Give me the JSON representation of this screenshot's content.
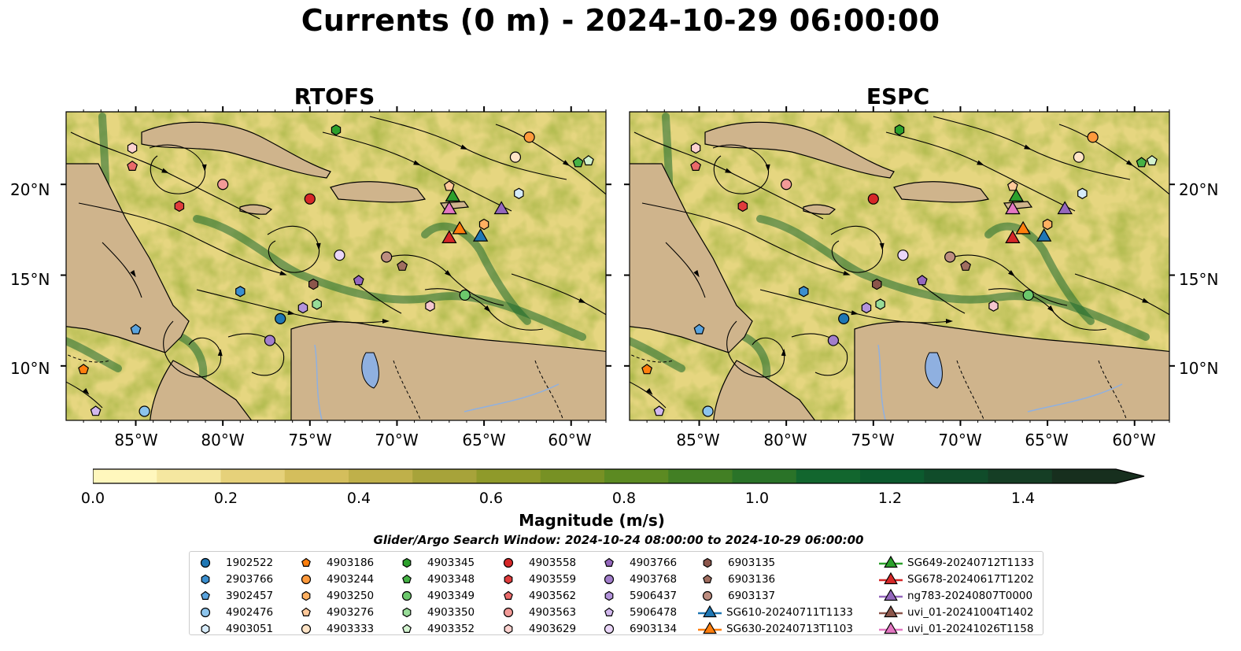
{
  "title": "Currents (0 m) - 2024-10-29 06:00:00",
  "panels": [
    {
      "title": "RTOFS"
    },
    {
      "title": "ESPC"
    }
  ],
  "lat_labels": [
    "20°N",
    "15°N",
    "10°N"
  ],
  "lon_labels": [
    "85°W",
    "80°W",
    "75°W",
    "70°W",
    "65°W",
    "60°W"
  ],
  "extent": {
    "lon_min": -89,
    "lon_max": -58,
    "lat_min": 7,
    "lat_max": 24
  },
  "colorbar": {
    "label": "Magnitude (m/s)",
    "ticks": [
      "0.0",
      "0.2",
      "0.4",
      "0.6",
      "0.8",
      "1.0",
      "1.2",
      "1.4"
    ],
    "min": 0.0,
    "max": 1.5,
    "extend": "max",
    "colors": [
      "#fff7bd",
      "#f5e7a0",
      "#e6d17a",
      "#d4be5c",
      "#bfb04a",
      "#a7a33a",
      "#8f9a2a",
      "#779124",
      "#5c8a22",
      "#427f24",
      "#2a7328",
      "#12662e",
      "#0c5a2e",
      "#104c2a",
      "#153e25",
      "#172f1e"
    ]
  },
  "search_window": "Glider/Argo Search Window: 2024-10-24 08:00:00 to 2024-10-29 06:00:00",
  "legend": [
    {
      "label": "1902522",
      "marker": "circle",
      "color": "#1f77b4"
    },
    {
      "label": "2903766",
      "marker": "hexagon",
      "color": "#3b8fcf"
    },
    {
      "label": "3902457",
      "marker": "pentagon",
      "color": "#5aa3dd"
    },
    {
      "label": "4902476",
      "marker": "circle",
      "color": "#8cc4ec"
    },
    {
      "label": "4903051",
      "marker": "hexagon",
      "color": "#d6ebfa"
    },
    {
      "label": "4903186",
      "marker": "pentagon",
      "color": "#ff7f0e"
    },
    {
      "label": "4903244",
      "marker": "circle",
      "color": "#ff9a3c"
    },
    {
      "label": "4903250",
      "marker": "hexagon",
      "color": "#ffb061"
    },
    {
      "label": "4903276",
      "marker": "pentagon",
      "color": "#ffc99a"
    },
    {
      "label": "4903333",
      "marker": "circle",
      "color": "#ffe4c6"
    },
    {
      "label": "4903345",
      "marker": "hexagon",
      "color": "#2ca02c"
    },
    {
      "label": "4903348",
      "marker": "pentagon",
      "color": "#45b245"
    },
    {
      "label": "4903349",
      "marker": "circle",
      "color": "#6cc86c"
    },
    {
      "label": "4903350",
      "marker": "hexagon",
      "color": "#98dc98"
    },
    {
      "label": "4903352",
      "marker": "pentagon",
      "color": "#d2f2cf"
    },
    {
      "label": "4903558",
      "marker": "circle",
      "color": "#d62728"
    },
    {
      "label": "4903559",
      "marker": "hexagon",
      "color": "#e03c3c"
    },
    {
      "label": "4903562",
      "marker": "pentagon",
      "color": "#ea6a6a"
    },
    {
      "label": "4903563",
      "marker": "circle",
      "color": "#f29a97"
    },
    {
      "label": "4903629",
      "marker": "hexagon",
      "color": "#fcd2cf"
    },
    {
      "label": "4903766",
      "marker": "pentagon",
      "color": "#9467bd"
    },
    {
      "label": "4903768",
      "marker": "circle",
      "color": "#a27ecb"
    },
    {
      "label": "5906437",
      "marker": "hexagon",
      "color": "#b393db"
    },
    {
      "label": "5906478",
      "marker": "pentagon",
      "color": "#d2b8ee"
    },
    {
      "label": "6903134",
      "marker": "circle",
      "color": "#ead6f8"
    },
    {
      "label": "6903135",
      "marker": "hexagon",
      "color": "#8c564b"
    },
    {
      "label": "6903136",
      "marker": "pentagon",
      "color": "#a06e60"
    },
    {
      "label": "6903137",
      "marker": "circle",
      "color": "#bd8d80"
    },
    {
      "label": "SG610-20240711T1133",
      "marker": "triangle-line",
      "color": "#1f77b4"
    },
    {
      "label": "SG630-20240713T1103",
      "marker": "triangle-line",
      "color": "#ff7f0e"
    },
    {
      "label": "SG649-20240712T1133",
      "marker": "triangle-line",
      "color": "#2ca02c"
    },
    {
      "label": "SG678-20240617T1202",
      "marker": "triangle-line",
      "color": "#d62728"
    },
    {
      "label": "ng783-20240807T0000",
      "marker": "triangle-line",
      "color": "#9467bd"
    },
    {
      "label": "uvi_01-20241004T1402",
      "marker": "triangle-line",
      "color": "#8c564b"
    },
    {
      "label": "uvi_01-20241026T1158",
      "marker": "triangle-line",
      "color": "#e377c2"
    }
  ],
  "markers": [
    {
      "id": "1902522",
      "lon": -76.7,
      "lat": 12.6
    },
    {
      "id": "2903766",
      "lon": -79.0,
      "lat": 14.1
    },
    {
      "id": "3902457",
      "lon": -85.0,
      "lat": 12.0
    },
    {
      "id": "4902476",
      "lon": -84.5,
      "lat": 7.5
    },
    {
      "id": "4903051",
      "lon": -63.0,
      "lat": 19.5
    },
    {
      "id": "4903186",
      "lon": -88.0,
      "lat": 9.8
    },
    {
      "id": "4903244",
      "lon": -62.4,
      "lat": 22.6
    },
    {
      "id": "4903250",
      "lon": -65.0,
      "lat": 17.8
    },
    {
      "id": "4903276",
      "lon": -67.0,
      "lat": 19.9
    },
    {
      "id": "4903333",
      "lon": -63.2,
      "lat": 21.5
    },
    {
      "id": "4903345",
      "lon": -73.5,
      "lat": 23.0
    },
    {
      "id": "4903348",
      "lon": -59.6,
      "lat": 21.2
    },
    {
      "id": "4903349",
      "lon": -66.1,
      "lat": 13.9
    },
    {
      "id": "4903350",
      "lon": -74.6,
      "lat": 13.4
    },
    {
      "id": "4903352",
      "lon": -59.0,
      "lat": 21.3
    },
    {
      "id": "4903558",
      "lon": -75.0,
      "lat": 19.2
    },
    {
      "id": "4903559",
      "lon": -82.5,
      "lat": 18.8
    },
    {
      "id": "4903562",
      "lon": -85.2,
      "lat": 21.0
    },
    {
      "id": "4903563",
      "lon": -80.0,
      "lat": 20.0
    },
    {
      "id": "4903629",
      "lon": -85.2,
      "lat": 22.0
    },
    {
      "id": "4903766",
      "lon": -72.2,
      "lat": 14.7
    },
    {
      "id": "4903768",
      "lon": -77.3,
      "lat": 11.4
    },
    {
      "id": "5906437",
      "lon": -75.4,
      "lat": 13.2
    },
    {
      "id": "5906478",
      "lon": -87.3,
      "lat": 7.5
    },
    {
      "id": "6903134",
      "lon": -73.3,
      "lat": 16.1
    },
    {
      "id": "6903135",
      "lon": -74.8,
      "lat": 14.5
    },
    {
      "id": "6903136",
      "lon": -69.7,
      "lat": 15.5
    },
    {
      "id": "6903137",
      "lon": -70.6,
      "lat": 16.0
    },
    {
      "id": "4903563b",
      "lon": -68.1,
      "lat": 13.3
    },
    {
      "id": "SG610-20240711T1133",
      "lon": -65.2,
      "lat": 17.1
    },
    {
      "id": "SG630-20240713T1103",
      "lon": -66.4,
      "lat": 17.5
    },
    {
      "id": "SG649-20240712T1133",
      "lon": -66.8,
      "lat": 19.3
    },
    {
      "id": "SG678-20240617T1202",
      "lon": -67.0,
      "lat": 17.0
    },
    {
      "id": "ng783-20240807T0000",
      "lon": -64.0,
      "lat": 18.6
    },
    {
      "id": "uvi_01-20241004T1402",
      "lon": -67.0,
      "lat": 18.6
    },
    {
      "id": "uvi_01-20241026T1158",
      "lon": -67.0,
      "lat": 18.6
    }
  ]
}
